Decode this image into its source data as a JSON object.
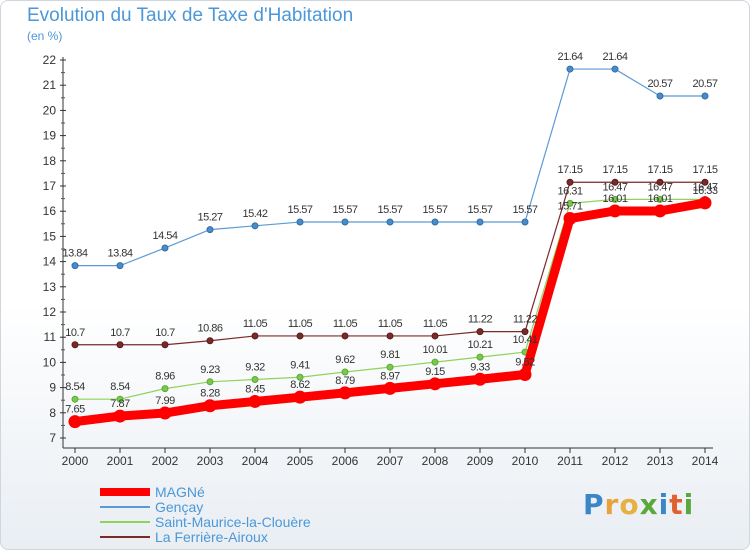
{
  "header": {
    "title": "Evolution du Taux de Taxe d'Habitation",
    "unit": "(en %)"
  },
  "brand": {
    "letters": [
      "P",
      "r",
      "o",
      "x",
      "i",
      "t",
      "i"
    ],
    "colors": [
      "#3a86c8",
      "#e8a23c",
      "#e8b040",
      "#5aa83a",
      "#3a86c8",
      "#e06030",
      "#5aa83a"
    ]
  },
  "chart_data": {
    "type": "line",
    "x": [
      "2000",
      "2001",
      "2002",
      "2003",
      "2004",
      "2005",
      "2006",
      "2007",
      "2008",
      "2009",
      "2010",
      "2011",
      "2012",
      "2013",
      "2014"
    ],
    "yticks": [
      7,
      8,
      9,
      10,
      11,
      12,
      13,
      14,
      15,
      16,
      17,
      18,
      19,
      20,
      21,
      22
    ],
    "ylim": [
      7,
      22
    ],
    "grid": false,
    "legend_position": "bottom-left",
    "series": [
      {
        "name": "MAGNé",
        "color": "#ff0000",
        "values": [
          7.65,
          7.87,
          7.99,
          8.28,
          8.45,
          8.62,
          8.79,
          8.97,
          9.15,
          9.33,
          9.52,
          15.71,
          16.01,
          16.01,
          16.33
        ],
        "labels": [
          "7.65",
          "7.87",
          "7.99",
          "8.28",
          "8.45",
          "8.62",
          "8.79",
          "8.97",
          "9.15",
          "9.33",
          "9.52",
          "15.71",
          "16.01",
          "16.01",
          "16.33"
        ]
      },
      {
        "name": "Gençay",
        "color": "#5b9bd5",
        "values": [
          13.84,
          13.84,
          14.54,
          15.27,
          15.42,
          15.57,
          15.57,
          15.57,
          15.57,
          15.57,
          15.57,
          21.64,
          21.64,
          20.57,
          20.57
        ],
        "labels": [
          "13.84",
          "13.84",
          "14.54",
          "15.27",
          "15.42",
          "15.57",
          "15.57",
          "15.57",
          "15.57",
          "15.57",
          "15.57",
          "21.64",
          "21.64",
          "20.57",
          "20.57"
        ]
      },
      {
        "name": "Saint-Maurice-la-Clouère",
        "color": "#8fd45a",
        "values": [
          8.54,
          8.54,
          8.96,
          9.23,
          9.32,
          9.41,
          9.62,
          9.81,
          10.01,
          10.21,
          10.41,
          16.31,
          16.47,
          16.47,
          16.47
        ],
        "labels": [
          "8.54",
          "8.54",
          "8.96",
          "9.23",
          "9.32",
          "9.41",
          "9.62",
          "9.81",
          "10.01",
          "10.21",
          "10.41",
          "16.31",
          "16.47",
          "16.47",
          "16.47"
        ]
      },
      {
        "name": "La Ferrière-Airoux",
        "color": "#7b2a2a",
        "values": [
          10.7,
          10.7,
          10.7,
          10.86,
          11.05,
          11.05,
          11.05,
          11.05,
          11.05,
          11.22,
          11.22,
          17.15,
          17.15,
          17.15,
          17.15
        ],
        "labels": [
          "10.7",
          "10.7",
          "10.7",
          "10.86",
          "11.05",
          "11.05",
          "11.05",
          "11.05",
          "11.05",
          "11.22",
          "11.22",
          "17.15",
          "17.15",
          "17.15",
          "17.15"
        ]
      }
    ]
  }
}
